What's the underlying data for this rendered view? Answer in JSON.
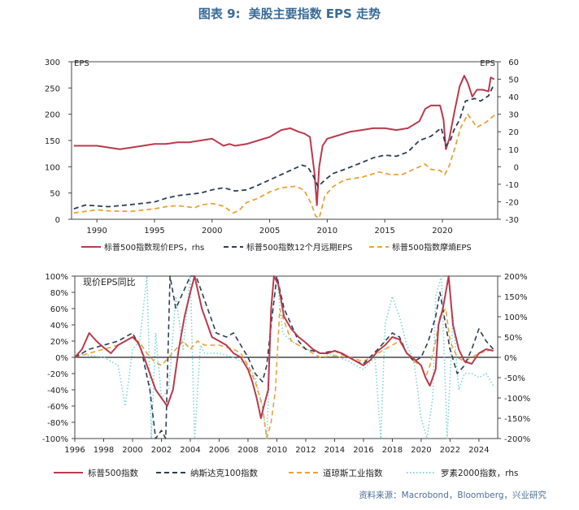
{
  "figure": {
    "label": "图表 9:",
    "title": "美股主要指数 EPS 走势"
  },
  "colors": {
    "red": "#b93a4c",
    "navy": "#2e3e56",
    "orange": "#e8a23a",
    "cyan": "#7fd3d8",
    "axis": "#444444",
    "text": "#222222"
  },
  "source": "资料来源：Macrobond，Bloomberg，兴业研究",
  "chart_data": [
    {
      "type": "line",
      "left_axis": {
        "label": "EPS",
        "ticks": [
          0,
          50,
          100,
          150,
          200,
          250,
          300
        ],
        "ylim": [
          0,
          300
        ]
      },
      "right_axis": {
        "label": "EPS",
        "ticks": [
          -30,
          -20,
          -10,
          0,
          10,
          20,
          30,
          40,
          50,
          60
        ],
        "ylim": [
          -30,
          60
        ]
      },
      "x_ticks": [
        1990,
        1995,
        2000,
        2005,
        2010,
        2015,
        2020
      ],
      "xlim": [
        1987.8,
        2024.8
      ],
      "legend_position": "bottom",
      "series": [
        {
          "name": "标普500指数现价EPS，rhs",
          "axis": "right",
          "color": "#b93a4c",
          "style": "solid",
          "x": [
            1988,
            1990,
            1991,
            1992,
            1993,
            1994,
            1995,
            1996,
            1997,
            1998,
            1999,
            2000,
            2000.5,
            2001,
            2001.5,
            2002,
            2003,
            2004,
            2005,
            2006,
            2006.8,
            2007.5,
            2008,
            2008.5,
            2008.9,
            2009.1,
            2009.3,
            2009.6,
            2010,
            2011,
            2012,
            2013,
            2014,
            2015,
            2016,
            2017,
            2018,
            2018.5,
            2019,
            2019.8,
            2020.1,
            2020.3,
            2020.6,
            2021,
            2021.5,
            2021.9,
            2022.2,
            2022.6,
            2023,
            2023.5,
            2024,
            2024.2,
            2024.5
          ],
          "y": [
            12,
            12,
            11,
            10,
            11,
            12,
            13,
            13,
            14,
            14,
            15,
            16,
            14,
            12,
            13,
            12,
            13,
            15,
            17,
            21,
            22,
            20,
            19,
            17,
            -4,
            -22,
            0,
            12,
            16,
            18,
            20,
            21,
            22,
            22,
            21,
            22,
            26,
            33,
            35,
            35,
            27,
            10,
            16,
            30,
            46,
            52,
            48,
            40,
            44,
            44,
            43,
            51,
            50
          ]
        },
        {
          "name": "标普500指数12个月远期EPS",
          "axis": "left",
          "color": "#2e3e56",
          "style": "dash",
          "x": [
            1988,
            1989,
            1991,
            1993,
            1995,
            1996,
            1997,
            1999,
            2000,
            2001,
            2002,
            2003,
            2004,
            2005,
            2006,
            2007,
            2007.8,
            2008.3,
            2008.8,
            2009.2,
            2009.8,
            2010.5,
            2011.5,
            2013,
            2014,
            2015,
            2016,
            2017,
            2018,
            2019,
            2019.9,
            2020.3,
            2020.7,
            2021,
            2021.5,
            2022,
            2022.8,
            2023.3,
            2024,
            2024.5
          ],
          "y": [
            20,
            27,
            24,
            28,
            33,
            40,
            45,
            50,
            56,
            60,
            54,
            56,
            65,
            75,
            85,
            95,
            103,
            100,
            82,
            62,
            75,
            87,
            95,
            108,
            117,
            122,
            120,
            128,
            150,
            158,
            174,
            140,
            150,
            170,
            190,
            225,
            230,
            225,
            235,
            258
          ]
        },
        {
          "name": "标普500指数摩熵EPS",
          "axis": "left",
          "color": "#e8a23a",
          "style": "dash",
          "x": [
            1988,
            1990,
            1991,
            1993,
            1995,
            1996,
            1997,
            1998.5,
            1999,
            2000,
            2001,
            2001.8,
            2002.3,
            2003,
            2004,
            2005,
            2006,
            2007.3,
            2008,
            2008.6,
            2009,
            2009.3,
            2009.8,
            2010.5,
            2011.5,
            2013,
            2014.5,
            2015.5,
            2016.5,
            2017.5,
            2018.5,
            2019,
            2019.8,
            2020.2,
            2020.6,
            2021,
            2021.6,
            2022.2,
            2023,
            2023.8,
            2024.6
          ],
          "y": [
            12,
            18,
            16,
            15,
            20,
            24,
            26,
            22,
            27,
            30,
            25,
            12,
            16,
            32,
            40,
            52,
            60,
            63,
            55,
            30,
            6,
            2,
            45,
            62,
            75,
            80,
            90,
            85,
            85,
            95,
            105,
            95,
            93,
            85,
            102,
            130,
            175,
            200,
            175,
            185,
            200
          ]
        }
      ]
    },
    {
      "type": "line",
      "title": "现价EPS同比",
      "left_ticks": [
        "-100%",
        "-80%",
        "-60%",
        "-40%",
        "-20%",
        "0%",
        "20%",
        "40%",
        "60%",
        "80%",
        "100%"
      ],
      "left_ylim": [
        -100,
        100
      ],
      "right_ticks": [
        "-200%",
        "-150%",
        "-100%",
        "-50%",
        "0%",
        "50%",
        "100%",
        "150%",
        "200%"
      ],
      "right_ylim": [
        -200,
        200
      ],
      "x_ticks": [
        1996,
        1998,
        2000,
        2002,
        2004,
        2006,
        2008,
        2010,
        2012,
        2014,
        2016,
        2018,
        2020,
        2022,
        2024
      ],
      "xlim": [
        1996,
        2025.3
      ],
      "legend_position": "bottom",
      "series": [
        {
          "name": "标普500指数",
          "axis": "left",
          "color": "#b93a4c",
          "style": "solid",
          "x": [
            1996,
            1996.5,
            1997,
            1997.5,
            1998,
            1998.5,
            1999,
            1999.5,
            2000,
            2000.4,
            2000.8,
            2001.2,
            2001.6,
            2002,
            2002.4,
            2002.8,
            2003.2,
            2003.6,
            2004,
            2004.3,
            2004.8,
            2005.5,
            2006,
            2006.5,
            2007,
            2007.5,
            2008,
            2008.3,
            2008.6,
            2008.9,
            2009.1,
            2009.4,
            2009.6,
            2009.8,
            2010.1,
            2010.5,
            2011,
            2011.5,
            2012,
            2012.5,
            2013,
            2013.5,
            2014,
            2014.5,
            2015,
            2015.5,
            2016,
            2016.5,
            2017,
            2017.5,
            2018,
            2018.5,
            2019,
            2019.5,
            2020,
            2020.3,
            2020.6,
            2021,
            2021.2,
            2021.5,
            2021.9,
            2022.2,
            2022.6,
            2023,
            2023.5,
            2024,
            2024.5,
            2025
          ],
          "y": [
            0,
            10,
            30,
            20,
            12,
            5,
            15,
            20,
            25,
            18,
            0,
            -20,
            -40,
            -50,
            -60,
            -40,
            10,
            50,
            80,
            100,
            60,
            25,
            20,
            15,
            5,
            0,
            -15,
            -30,
            -50,
            -75,
            -60,
            -40,
            60,
            100,
            90,
            50,
            35,
            25,
            18,
            10,
            5,
            5,
            8,
            5,
            0,
            -5,
            -10,
            -3,
            8,
            15,
            25,
            22,
            5,
            -2,
            -10,
            -25,
            -35,
            -15,
            40,
            60,
            100,
            40,
            10,
            -5,
            -8,
            5,
            10,
            8
          ]
        },
        {
          "name": "纳斯达克100指数",
          "axis": "left",
          "color": "#2e3e56",
          "style": "dash",
          "x": [
            1996,
            1997,
            1998,
            1999,
            2000,
            2000.6,
            2001.2,
            2001.6,
            2002,
            2002.3,
            2002.6,
            2003,
            2003.5,
            2004,
            2004.4,
            2004.8,
            2005.2,
            2005.8,
            2006.5,
            2007,
            2007.5,
            2008,
            2008.5,
            2009,
            2009.3,
            2009.6,
            2010,
            2010.5,
            2011,
            2011.5,
            2012,
            2012.5,
            2013,
            2014,
            2015,
            2015.5,
            2016,
            2017,
            2017.5,
            2018,
            2018.5,
            2019,
            2019.5,
            2020,
            2020.5,
            2021,
            2021.3,
            2021.6,
            2022,
            2022.5,
            2023,
            2023.5,
            2024,
            2024.5,
            2025
          ],
          "y": [
            0,
            10,
            15,
            20,
            30,
            10,
            -40,
            -100,
            -90,
            -100,
            100,
            60,
            80,
            100,
            100,
            80,
            60,
            30,
            25,
            30,
            15,
            0,
            -20,
            -30,
            -10,
            40,
            100,
            60,
            40,
            20,
            10,
            8,
            5,
            8,
            0,
            -5,
            -8,
            10,
            20,
            30,
            25,
            5,
            -5,
            0,
            20,
            50,
            80,
            50,
            10,
            -20,
            -10,
            10,
            35,
            20,
            10
          ]
        },
        {
          "name": "道琼斯工业指数",
          "axis": "left",
          "color": "#e8a23a",
          "style": "dash",
          "x": [
            1996,
            1997,
            1998,
            1999,
            2000,
            2000.5,
            2001,
            2001.5,
            2002,
            2002.5,
            2003,
            2003.5,
            2004,
            2004.5,
            2005,
            2006,
            2007,
            2007.5,
            2008,
            2008.5,
            2009,
            2009.3,
            2009.6,
            2009.9,
            2010.2,
            2010.6,
            2011,
            2012,
            2013,
            2014,
            2015,
            2016,
            2017,
            2018,
            2018.5,
            2019,
            2019.5,
            2020,
            2020.3,
            2020.6,
            2021,
            2021.3,
            2021.7,
            2022,
            2022.5,
            2023,
            2024,
            2025
          ],
          "y": [
            0,
            5,
            10,
            15,
            25,
            18,
            5,
            -5,
            -10,
            0,
            10,
            20,
            10,
            20,
            15,
            15,
            10,
            5,
            -10,
            -30,
            -60,
            -100,
            -80,
            -40,
            60,
            40,
            20,
            10,
            0,
            2,
            0,
            -5,
            5,
            15,
            20,
            5,
            -5,
            -10,
            -25,
            -10,
            20,
            50,
            60,
            20,
            0,
            -5,
            5,
            10
          ]
        },
        {
          "name": "罗素2000指数，rhs",
          "axis": "right",
          "color": "#7fd3d8",
          "style": "dot",
          "x": [
            1996,
            1997,
            1998,
            1999,
            1999.5,
            2000,
            2000.5,
            2001,
            2001.3,
            2001.6,
            2002,
            2002.5,
            2003,
            2003.5,
            2004,
            2004.3,
            2004.7,
            2005,
            2006,
            2007,
            2008,
            2008.5,
            2009,
            2009.3,
            2009.6,
            2010,
            2010.4,
            2011,
            2012,
            2013,
            2014,
            2015,
            2016,
            2016.8,
            2017.2,
            2017.5,
            2018,
            2018.5,
            2019,
            2019.5,
            2020,
            2020.4,
            2020.8,
            2021,
            2021.4,
            2021.8,
            2022.2,
            2022.6,
            2023,
            2023.5,
            2024,
            2024.5,
            2025
          ],
          "y": [
            10,
            5,
            0,
            -20,
            -120,
            20,
            40,
            200,
            -200,
            60,
            -100,
            -80,
            150,
            20,
            200,
            -200,
            30,
            10,
            10,
            0,
            -20,
            -50,
            -120,
            -200,
            80,
            200,
            60,
            40,
            20,
            10,
            5,
            -10,
            -30,
            0,
            -200,
            80,
            150,
            100,
            30,
            -10,
            -150,
            -200,
            -100,
            150,
            200,
            -200,
            100,
            -80,
            -40,
            -40,
            -50,
            -40,
            -70
          ]
        }
      ]
    }
  ]
}
